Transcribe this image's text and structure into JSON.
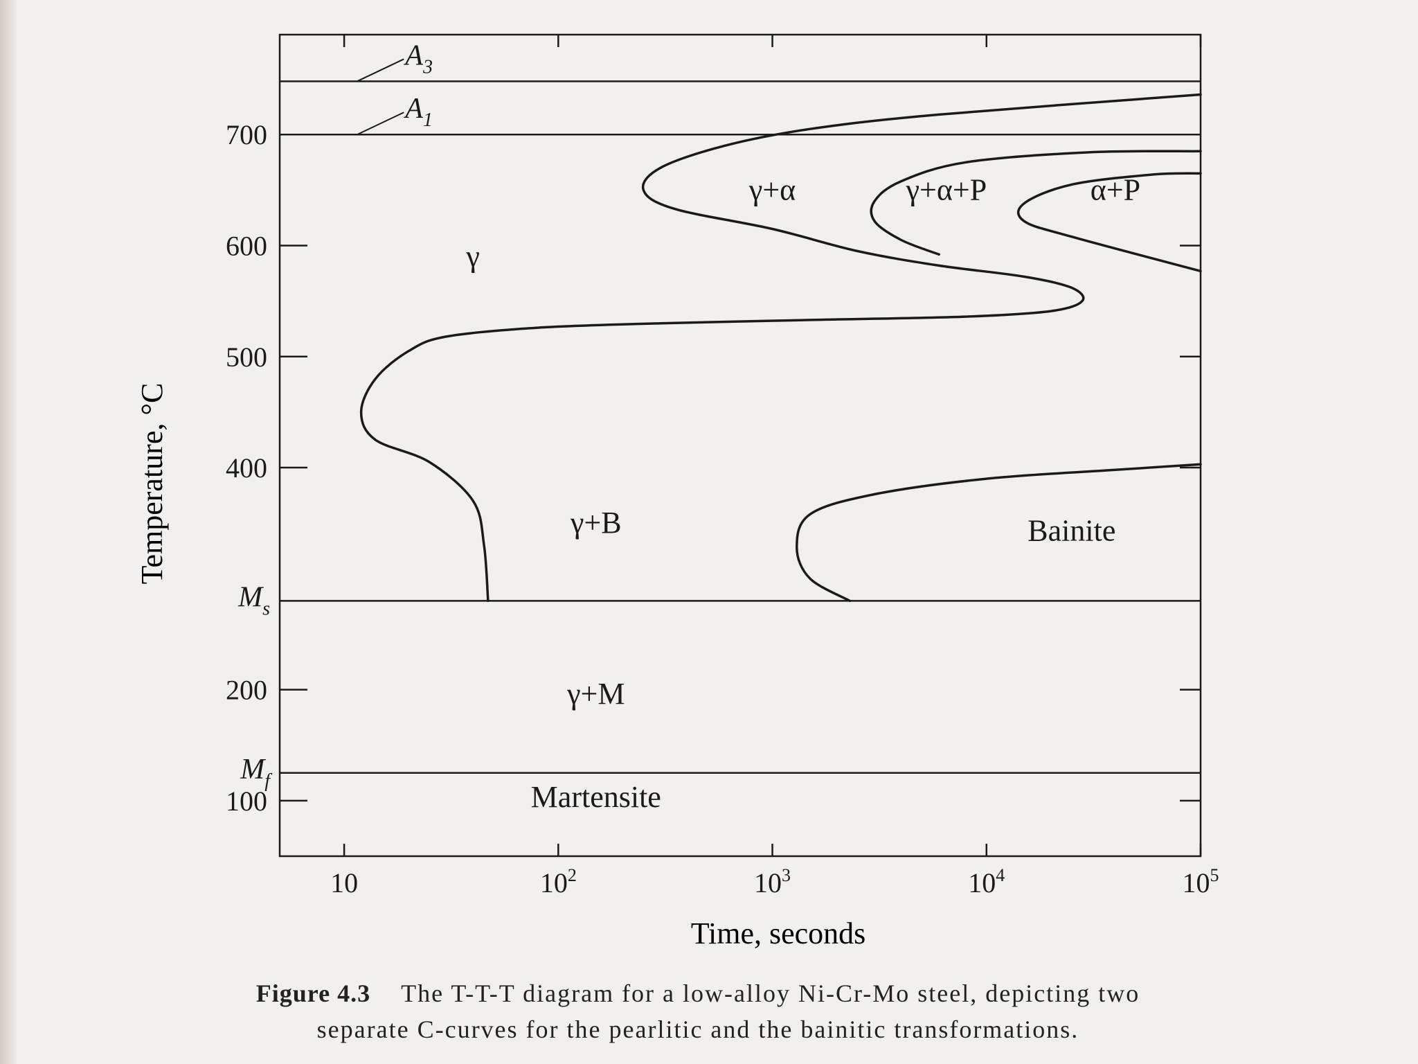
{
  "caption": {
    "label": "Figure 4.3",
    "text_line1": "The T-T-T diagram for a low-alloy Ni-Cr-Mo steel, depicting two",
    "text_line2": "separate C-curves for the pearlitic and the bainitic transformations."
  },
  "chart_data": {
    "type": "line",
    "xlabel": "Time, seconds",
    "ylabel": "Temperature, °C",
    "x_scale": "log",
    "xlim": [
      5,
      100000
    ],
    "ylim": [
      50,
      790
    ],
    "x_ticks": [
      {
        "value": 10,
        "base": "10",
        "exp": ""
      },
      {
        "value": 100,
        "base": "10",
        "exp": "2"
      },
      {
        "value": 1000,
        "base": "10",
        "exp": "3"
      },
      {
        "value": 10000,
        "base": "10",
        "exp": "4"
      },
      {
        "value": 100000,
        "base": "10",
        "exp": "5"
      }
    ],
    "y_ticks": [
      {
        "value": 100,
        "label": "100"
      },
      {
        "value": 200,
        "label": "200"
      },
      {
        "value": 400,
        "label": "400"
      },
      {
        "value": 500,
        "label": "500"
      },
      {
        "value": 600,
        "label": "600"
      },
      {
        "value": 700,
        "label": "700"
      }
    ],
    "horizontal_lines": [
      {
        "label": "A",
        "sub": "3",
        "y": 748,
        "kind": "pointer"
      },
      {
        "label": "A",
        "sub": "1",
        "y": 700,
        "kind": "pointer"
      },
      {
        "label": "M",
        "sub": "s",
        "y": 280,
        "kind": "axis"
      },
      {
        "label": "M",
        "sub": "f",
        "y": 125,
        "kind": "axis"
      }
    ],
    "curves": [
      {
        "name": "start of pearlitic transformation (γ+α)",
        "points": [
          [
            100000,
            736
          ],
          [
            6000,
            718
          ],
          [
            1500,
            705
          ],
          [
            600,
            690
          ],
          [
            300,
            670
          ],
          [
            250,
            650
          ],
          [
            350,
            633
          ],
          [
            1000,
            615
          ],
          [
            2500,
            595
          ],
          [
            6000,
            582
          ],
          [
            15000,
            572
          ],
          [
            25000,
            562
          ],
          [
            28000,
            550
          ],
          [
            20000,
            541
          ],
          [
            8000,
            536
          ],
          [
            1500,
            533
          ],
          [
            300,
            530
          ],
          [
            80,
            526
          ],
          [
            30,
            518
          ],
          [
            20,
            505
          ],
          [
            14,
            480
          ],
          [
            12,
            450
          ],
          [
            14,
            425
          ],
          [
            25,
            405
          ],
          [
            40,
            370
          ],
          [
            45,
            330
          ],
          [
            47,
            280
          ]
        ]
      },
      {
        "name": "start of pearlite formation (γ+α+P)",
        "points": [
          [
            100000,
            685
          ],
          [
            30000,
            684
          ],
          [
            8000,
            675
          ],
          [
            4000,
            658
          ],
          [
            3000,
            640
          ],
          [
            3000,
            622
          ],
          [
            4000,
            605
          ],
          [
            6000,
            592
          ]
        ]
      },
      {
        "name": "end of pearlite formation (α+P)",
        "points": [
          [
            100000,
            665
          ],
          [
            60000,
            664
          ],
          [
            25000,
            655
          ],
          [
            15000,
            638
          ],
          [
            15000,
            622
          ],
          [
            25000,
            608
          ],
          [
            100000,
            577
          ]
        ]
      },
      {
        "name": "start of bainitic transformation",
        "points": [
          [
            100000,
            403
          ],
          [
            40000,
            398
          ],
          [
            10000,
            390
          ],
          [
            3000,
            376
          ],
          [
            1500,
            358
          ],
          [
            1300,
            328
          ],
          [
            1500,
            300
          ],
          [
            2300,
            280
          ]
        ]
      }
    ],
    "regions": [
      {
        "label": "γ",
        "x": 40,
        "y": 590
      },
      {
        "label": "γ+α",
        "x": 1000,
        "y": 650
      },
      {
        "label": "γ+α+P",
        "x": 6500,
        "y": 650
      },
      {
        "label": "α+P",
        "x": 40000,
        "y": 650
      },
      {
        "label": "γ+B",
        "x": 150,
        "y": 350
      },
      {
        "label": "Bainite",
        "x": 25000,
        "y": 343
      },
      {
        "label": "γ+M",
        "x": 150,
        "y": 196
      },
      {
        "label": "Martensite",
        "x": 150,
        "y": 103
      }
    ]
  }
}
